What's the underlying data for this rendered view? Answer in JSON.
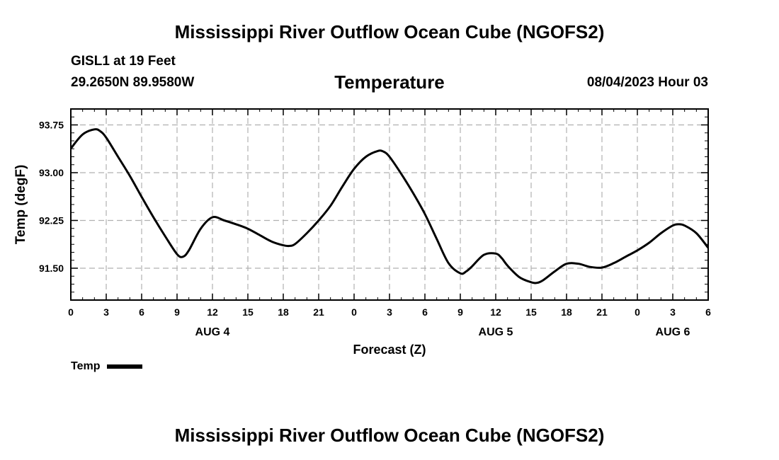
{
  "page_title": "Mississippi River Outflow Ocean Cube (NGOFS2)",
  "footer_title": "Mississippi River Outflow Ocean Cube (NGOFS2)",
  "station": {
    "name_depth": "GISL1 at 19 Feet",
    "coords": "29.2650N  89.9580W"
  },
  "timestamp": "08/04/2023 Hour 03",
  "legend": {
    "label": "Temp",
    "color": "#000000"
  },
  "chart_data": {
    "type": "line",
    "title": "Temperature",
    "xlabel": "Forecast (Z)",
    "ylabel": "Temp (degF)",
    "xlim": [
      0,
      54
    ],
    "ylim": [
      91.0,
      94.0
    ],
    "x_ticks": [
      0,
      3,
      6,
      9,
      12,
      15,
      18,
      21,
      24,
      27,
      30,
      33,
      36,
      39,
      42,
      45,
      48,
      51,
      54
    ],
    "x_tick_labels": [
      "0",
      "3",
      "6",
      "9",
      "12",
      "15",
      "18",
      "21",
      "0",
      "3",
      "6",
      "9",
      "12",
      "15",
      "18",
      "21",
      "0",
      "3",
      "6"
    ],
    "y_ticks": [
      91.5,
      92.25,
      93.0,
      93.75
    ],
    "y_tick_labels": [
      "91.50",
      "92.25",
      "93.00",
      "93.75"
    ],
    "day_labels": [
      {
        "x": 12,
        "label": "AUG 4"
      },
      {
        "x": 36,
        "label": "AUG 5"
      },
      {
        "x": 51,
        "label": "AUG 6"
      }
    ],
    "grid": true,
    "series": [
      {
        "name": "Temp",
        "color": "#000000",
        "x": [
          0,
          1,
          2,
          2.5,
          3,
          4,
          5,
          6,
          7,
          8,
          9,
          9.5,
          10,
          11,
          12,
          13,
          14,
          15,
          16,
          17,
          18,
          18.5,
          19,
          20,
          21,
          22,
          23,
          24,
          25,
          26,
          26.5,
          27,
          28,
          29,
          30,
          31,
          32,
          33,
          33.5,
          34,
          35,
          36,
          36.5,
          37,
          38,
          39,
          39.5,
          40,
          41,
          42,
          43,
          44,
          45,
          46,
          47,
          48,
          49,
          50,
          51,
          51.5,
          52,
          53,
          54
        ],
        "y": [
          93.38,
          93.6,
          93.68,
          93.65,
          93.55,
          93.25,
          92.95,
          92.62,
          92.3,
          92.0,
          91.72,
          91.68,
          91.78,
          92.12,
          92.3,
          92.25,
          92.19,
          92.12,
          92.02,
          91.92,
          91.86,
          91.85,
          91.88,
          92.05,
          92.25,
          92.48,
          92.78,
          93.06,
          93.25,
          93.34,
          93.33,
          93.25,
          92.98,
          92.68,
          92.35,
          91.96,
          91.58,
          91.42,
          91.45,
          91.53,
          91.71,
          91.73,
          91.66,
          91.54,
          91.36,
          91.28,
          91.27,
          91.31,
          91.45,
          91.57,
          91.57,
          91.52,
          91.51,
          91.58,
          91.68,
          91.78,
          91.9,
          92.05,
          92.17,
          92.19,
          92.17,
          92.05,
          91.82
        ]
      }
    ]
  }
}
